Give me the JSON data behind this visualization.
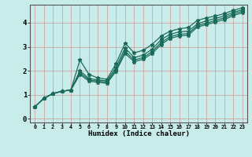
{
  "xlabel": "Humidex (Indice chaleur)",
  "ylabel": "",
  "bg_color": "#c8ecea",
  "grid_color": "#cc9999",
  "line_color": "#1a6b5a",
  "marker": "*",
  "xlim": [
    -0.5,
    23.5
  ],
  "ylim": [
    -0.15,
    4.75
  ],
  "xticks": [
    0,
    1,
    2,
    3,
    4,
    5,
    6,
    7,
    8,
    9,
    10,
    11,
    12,
    13,
    14,
    15,
    16,
    17,
    18,
    19,
    20,
    21,
    22,
    23
  ],
  "yticks": [
    0,
    1,
    2,
    3,
    4
  ],
  "line1_y": [
    0.5,
    0.85,
    1.05,
    1.15,
    1.2,
    2.45,
    1.85,
    1.7,
    1.65,
    2.3,
    3.15,
    2.75,
    2.85,
    3.1,
    3.45,
    3.65,
    3.75,
    3.8,
    4.1,
    4.2,
    4.28,
    4.38,
    4.52,
    4.62
  ],
  "line2_y": [
    0.5,
    0.85,
    1.05,
    1.15,
    1.2,
    2.0,
    1.68,
    1.62,
    1.58,
    2.15,
    2.95,
    2.55,
    2.65,
    2.9,
    3.3,
    3.52,
    3.62,
    3.65,
    3.95,
    4.08,
    4.18,
    4.28,
    4.44,
    4.54
  ],
  "line3_y": [
    0.5,
    0.85,
    1.05,
    1.15,
    1.2,
    1.92,
    1.62,
    1.57,
    1.53,
    2.05,
    2.82,
    2.45,
    2.55,
    2.8,
    3.18,
    3.42,
    3.52,
    3.55,
    3.88,
    3.98,
    4.1,
    4.2,
    4.37,
    4.48
  ],
  "line4_y": [
    0.5,
    0.85,
    1.05,
    1.15,
    1.2,
    1.85,
    1.57,
    1.52,
    1.48,
    1.98,
    2.72,
    2.38,
    2.48,
    2.72,
    3.1,
    3.35,
    3.45,
    3.48,
    3.82,
    3.92,
    4.03,
    4.13,
    4.3,
    4.42
  ]
}
